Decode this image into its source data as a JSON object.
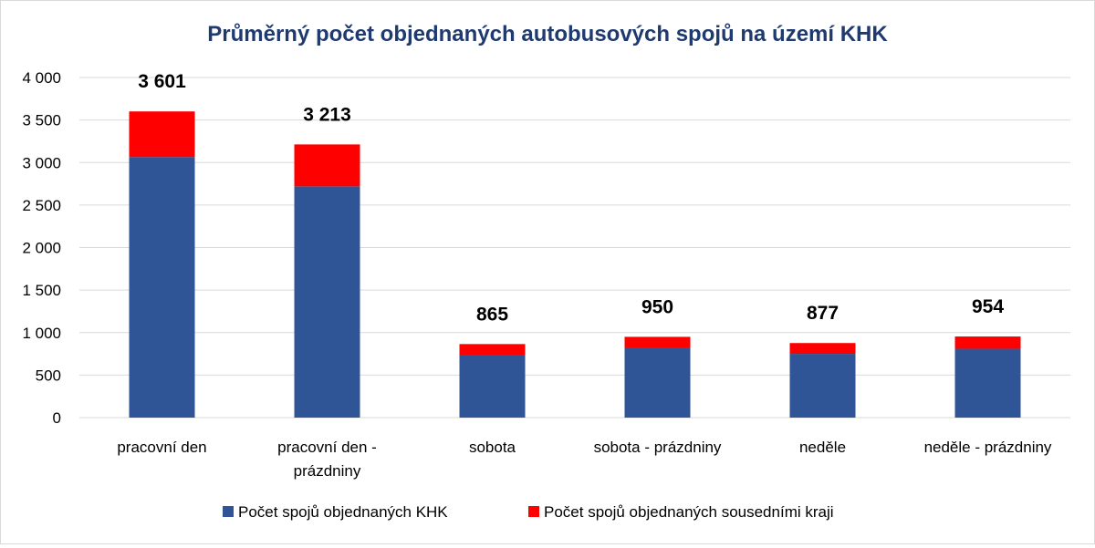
{
  "chart_data": {
    "type": "bar",
    "stacked": true,
    "title": "Průměrný počet objednaných autobusových spojů na území KHK",
    "categories": [
      [
        "pracovní den"
      ],
      [
        "pracovní den -",
        "prázdniny"
      ],
      [
        "sobota"
      ],
      [
        "sobota - prázdniny"
      ],
      [
        "neděle"
      ],
      [
        "neděle - prázdniny"
      ]
    ],
    "series": [
      {
        "name": "Počet spojů objednaných KHK",
        "color": "#2f5597",
        "values": [
          3065,
          2720,
          740,
          820,
          750,
          810
        ]
      },
      {
        "name": "Počet spojů objednaných sousedními kraji",
        "color": "#ff0000",
        "values": [
          536,
          493,
          125,
          130,
          127,
          144
        ]
      }
    ],
    "totals": [
      "3 601",
      "3 213",
      "865",
      "950",
      "877",
      "954"
    ],
    "y_ticks": [
      "0",
      "500",
      "1 000",
      "1 500",
      "2 000",
      "2 500",
      "3 000",
      "3 500",
      "4 000"
    ],
    "ylim": [
      0,
      4000
    ],
    "grid": true,
    "legend_position": "bottom"
  }
}
